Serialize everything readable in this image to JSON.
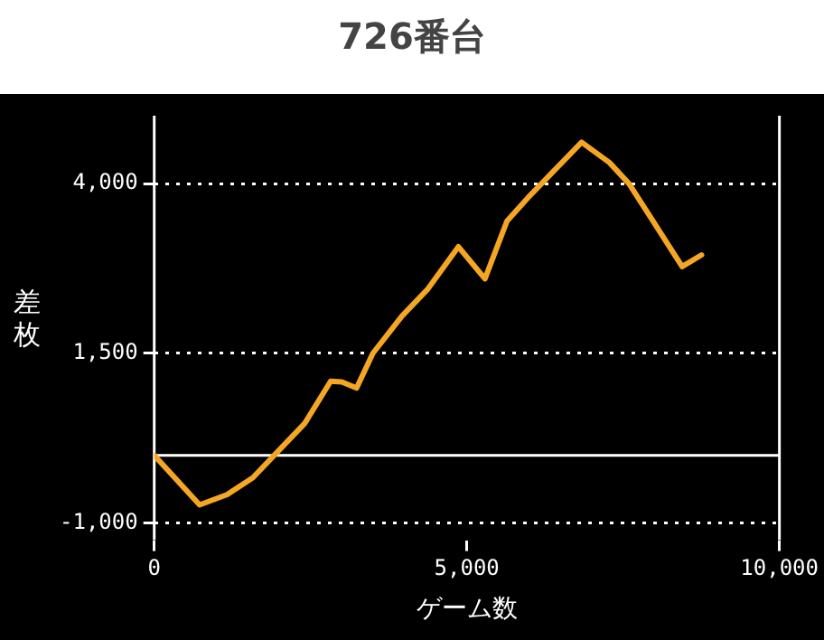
{
  "chart_data": {
    "type": "line",
    "title": "726番台",
    "xlabel": "ゲーム数",
    "ylabel": "差枚",
    "x": [
      0,
      726,
      1162,
      1577,
      1992,
      2407,
      2822,
      3000,
      3237,
      3496,
      3963,
      4378,
      4865,
      5290,
      5643,
      5985,
      6836,
      7282,
      7593,
      7956,
      8444,
      8755
    ],
    "series": [
      {
        "color": "#f5a623",
        "values": [
          0,
          -730,
          -580,
          -330,
          70,
          470,
          1090,
          1080,
          990,
          1500,
          2050,
          2450,
          3070,
          2600,
          3450,
          3800,
          4610,
          4310,
          4000,
          3480,
          2780,
          2950
        ]
      }
    ],
    "xlim": [
      0,
      10000
    ],
    "xticks": [
      0,
      {
        "value": 5000,
        "label": "5,000"
      },
      {
        "value": 10000,
        "label": "10,000"
      }
    ],
    "ylim": [
      -1250,
      5000
    ],
    "yticks": [
      {
        "value": -1000,
        "label": "-1,000"
      },
      {
        "value": 1500,
        "label": "1,500"
      },
      {
        "value": 4000,
        "label": "4,000"
      }
    ],
    "grid": "y",
    "legend": false,
    "marker": "none",
    "line_style": "solid",
    "ref_lines": [
      {
        "axis": "y",
        "value": 0,
        "color": "#ffffff"
      }
    ]
  }
}
